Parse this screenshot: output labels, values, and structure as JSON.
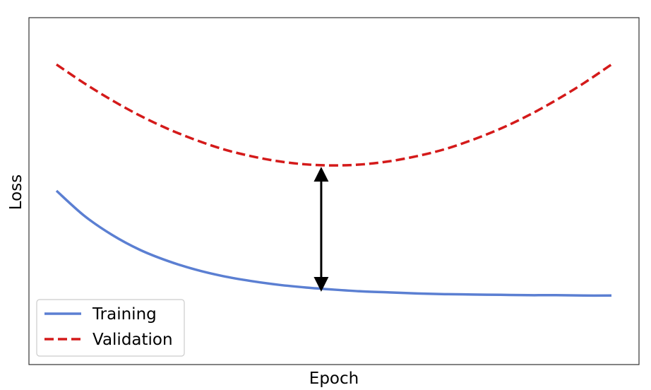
{
  "chart_data": {
    "type": "line",
    "title": "",
    "xlabel": "Epoch",
    "ylabel": "Loss",
    "xlim": [
      0,
      100
    ],
    "ylim": [
      0,
      100
    ],
    "grid": false,
    "legend_position": "lower-left",
    "x": [
      0,
      5,
      10,
      15,
      20,
      25,
      30,
      35,
      40,
      45,
      50,
      55,
      60,
      65,
      70,
      75,
      80,
      85,
      90,
      95,
      100
    ],
    "series": [
      {
        "name": "Training",
        "color": "#5b7fd2",
        "style": "solid",
        "values": [
          50.1,
          42.9,
          37.4,
          33.1,
          29.9,
          27.4,
          25.5,
          24.1,
          23.0,
          22.2,
          21.6,
          21.1,
          20.8,
          20.5,
          20.3,
          20.2,
          20.1,
          20.0,
          20.0,
          19.9,
          19.9
        ]
      },
      {
        "name": "Validation",
        "color": "#d41a1a",
        "style": "dashed",
        "values": [
          86.5,
          81.1,
          76.2,
          71.8,
          68.0,
          64.8,
          62.1,
          60.1,
          58.6,
          57.7,
          57.4,
          57.7,
          58.6,
          60.1,
          62.1,
          64.8,
          68.0,
          71.8,
          76.2,
          81.1,
          86.5
        ]
      }
    ],
    "annotations": [
      {
        "type": "double-arrow",
        "color": "#000000",
        "x": 47.7,
        "y_from": 21.5,
        "y_to": 56.5
      }
    ]
  }
}
